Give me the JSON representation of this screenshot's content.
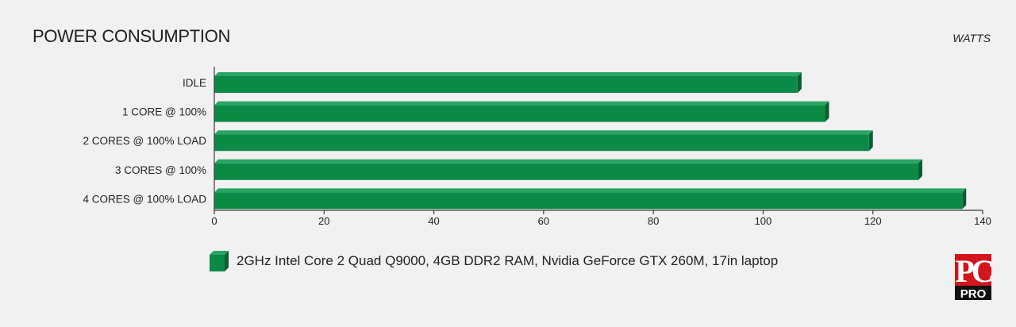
{
  "chart_data": {
    "type": "bar",
    "orientation": "horizontal",
    "title": "POWER CONSUMPTION",
    "unit_label": "WATTS",
    "categories": [
      "IDLE",
      "1 CORE @ 100%",
      "2 CORES @ 100% LOAD",
      "3 CORES @ 100%",
      "4 CORES @ 100% LOAD"
    ],
    "series": [
      {
        "name": "2GHz Intel Core 2 Quad Q9000, 4GB DDR2 RAM, Nvidia GeForce GTX 260M, 17in laptop",
        "values": [
          107,
          112,
          120,
          129,
          137
        ]
      }
    ],
    "xlim": [
      0,
      140
    ],
    "xticks": [
      "0",
      "20",
      "40",
      "60",
      "80",
      "100",
      "120",
      "140"
    ],
    "grid": false,
    "legend_position": "bottom",
    "colors": {
      "bar_face": "#0b8a45",
      "bar_top": "#2aa563",
      "bar_side": "#075f2f",
      "axis": "#3a3a3a",
      "background": "#f1f1f1"
    }
  },
  "logo": {
    "text_top": "PC",
    "text_bottom": "PRO"
  }
}
